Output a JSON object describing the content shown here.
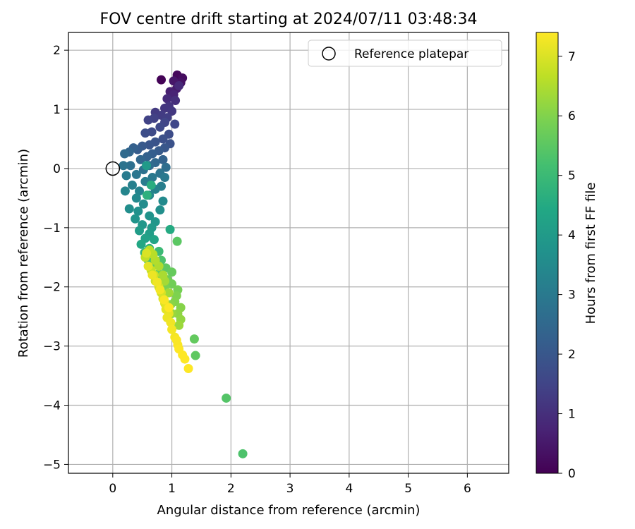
{
  "chart_data": {
    "type": "scatter",
    "title": "FOV centre drift starting at 2024/07/11 03:48:34",
    "xlabel": "Angular distance from reference (arcmin)",
    "ylabel": "Rotation from reference (arcmin)",
    "xlim": [
      -0.75,
      6.7
    ],
    "ylim": [
      -5.15,
      2.3
    ],
    "xticks": [
      0,
      1,
      2,
      3,
      4,
      5,
      6
    ],
    "yticks": [
      -5,
      -4,
      -3,
      -2,
      -1,
      0,
      1,
      2
    ],
    "xtick_labels": [
      "0",
      "1",
      "2",
      "3",
      "4",
      "5",
      "6"
    ],
    "ytick_labels": [
      "−5",
      "−4",
      "−3",
      "−2",
      "−1",
      "0",
      "1",
      "2"
    ],
    "grid": true,
    "legend": {
      "position": "top-right",
      "entries": [
        {
          "label": "Reference platepar",
          "marker": "open-circle",
          "color": "#000000"
        }
      ]
    },
    "colorbar": {
      "label": "Hours from first FF file",
      "colormap": "viridis",
      "range": [
        0,
        7.4
      ],
      "ticks": [
        0,
        1,
        2,
        3,
        4,
        5,
        6,
        7
      ],
      "tick_labels": [
        "0",
        "1",
        "2",
        "3",
        "4",
        "5",
        "6",
        "7"
      ]
    },
    "reference_point": {
      "x": 0,
      "y": 0
    },
    "points": [
      [
        0.82,
        1.5,
        0.05
      ],
      [
        1.09,
        1.58,
        0.15
      ],
      [
        1.18,
        1.53,
        0.25
      ],
      [
        1.15,
        1.45,
        0.35
      ],
      [
        1.03,
        1.48,
        0.45
      ],
      [
        1.08,
        1.35,
        0.55
      ],
      [
        0.97,
        1.3,
        0.65
      ],
      [
        1.03,
        1.25,
        0.75
      ],
      [
        1.12,
        1.4,
        0.85
      ],
      [
        0.92,
        1.18,
        0.9
      ],
      [
        1.06,
        1.15,
        1.0
      ],
      [
        0.95,
        1.05,
        1.1
      ],
      [
        0.88,
        1.02,
        1.15
      ],
      [
        1.0,
        0.97,
        1.2
      ],
      [
        0.72,
        0.95,
        1.25
      ],
      [
        0.82,
        0.9,
        1.3
      ],
      [
        0.92,
        0.86,
        1.35
      ],
      [
        0.7,
        0.85,
        1.4
      ],
      [
        0.6,
        0.82,
        1.45
      ],
      [
        0.88,
        0.78,
        1.5
      ],
      [
        1.05,
        0.75,
        1.55
      ],
      [
        0.8,
        0.7,
        1.6
      ],
      [
        0.66,
        0.62,
        1.65
      ],
      [
        0.95,
        0.58,
        1.7
      ],
      [
        0.55,
        0.6,
        1.75
      ],
      [
        0.85,
        0.5,
        1.8
      ],
      [
        0.97,
        0.42,
        1.85
      ],
      [
        0.72,
        0.45,
        1.9
      ],
      [
        0.62,
        0.4,
        1.95
      ],
      [
        0.88,
        0.35,
        2.0
      ],
      [
        0.5,
        0.38,
        2.05
      ],
      [
        0.78,
        0.3,
        2.1
      ],
      [
        0.42,
        0.32,
        2.15
      ],
      [
        0.67,
        0.25,
        2.2
      ],
      [
        0.35,
        0.35,
        2.25
      ],
      [
        0.58,
        0.2,
        2.3
      ],
      [
        0.85,
        0.15,
        2.35
      ],
      [
        0.28,
        0.28,
        2.4
      ],
      [
        0.47,
        0.15,
        2.45
      ],
      [
        0.72,
        0.1,
        2.5
      ],
      [
        0.2,
        0.25,
        2.55
      ],
      [
        0.62,
        0.05,
        2.6
      ],
      [
        0.9,
        0.02,
        2.65
      ],
      [
        0.3,
        0.05,
        2.7
      ],
      [
        0.52,
        -0.02,
        2.75
      ],
      [
        0.18,
        0.05,
        2.8
      ],
      [
        0.8,
        -0.08,
        2.85
      ],
      [
        0.4,
        -0.1,
        2.9
      ],
      [
        0.67,
        -0.15,
        2.95
      ],
      [
        0.88,
        -0.15,
        3.0
      ],
      [
        0.23,
        -0.12,
        3.05
      ],
      [
        0.55,
        -0.22,
        3.1
      ],
      [
        0.82,
        -0.3,
        3.15
      ],
      [
        0.33,
        -0.28,
        3.2
      ],
      [
        0.72,
        -0.35,
        3.25
      ],
      [
        0.45,
        -0.38,
        3.3
      ],
      [
        0.21,
        -0.38,
        3.35
      ],
      [
        0.62,
        -0.45,
        3.4
      ],
      [
        0.4,
        -0.5,
        3.45
      ],
      [
        0.85,
        -0.55,
        3.5
      ],
      [
        0.52,
        -0.6,
        3.55
      ],
      [
        0.28,
        -0.68,
        3.6
      ],
      [
        0.8,
        -0.7,
        3.65
      ],
      [
        0.43,
        -0.72,
        3.7
      ],
      [
        0.62,
        -0.8,
        3.75
      ],
      [
        0.38,
        -0.85,
        3.8
      ],
      [
        0.72,
        -0.9,
        3.85
      ],
      [
        0.5,
        -0.95,
        3.9
      ],
      [
        0.66,
        -1.0,
        3.95
      ],
      [
        0.57,
        0.05,
        4.0
      ],
      [
        0.45,
        -1.05,
        4.05
      ],
      [
        0.62,
        -1.1,
        4.1
      ],
      [
        0.55,
        -1.18,
        4.2
      ],
      [
        0.7,
        -1.2,
        4.3
      ],
      [
        0.48,
        -1.28,
        4.4
      ],
      [
        0.97,
        -1.03,
        4.5
      ],
      [
        0.65,
        -0.28,
        4.6
      ],
      [
        0.58,
        -0.45,
        4.7
      ],
      [
        0.62,
        -1.35,
        4.8
      ],
      [
        0.54,
        -1.42,
        4.9
      ],
      [
        0.78,
        -1.4,
        5.0
      ],
      [
        0.68,
        -1.5,
        5.1
      ],
      [
        0.6,
        -1.55,
        5.2
      ],
      [
        0.82,
        -1.55,
        5.3
      ],
      [
        0.72,
        -1.62,
        5.4
      ],
      [
        1.09,
        -1.23,
        5.5
      ],
      [
        0.9,
        -1.68,
        5.55
      ],
      [
        0.65,
        -1.68,
        5.6
      ],
      [
        1.0,
        -1.75,
        5.65
      ],
      [
        0.78,
        -1.78,
        5.7
      ],
      [
        0.93,
        -1.88,
        5.75
      ],
      [
        1.0,
        -1.95,
        5.8
      ],
      [
        1.1,
        -2.05,
        5.85
      ],
      [
        0.88,
        -2.0,
        5.9
      ],
      [
        1.08,
        -2.15,
        5.95
      ],
      [
        1.05,
        -2.25,
        6.0
      ],
      [
        1.15,
        -2.35,
        6.05
      ],
      [
        0.98,
        -2.3,
        6.1
      ],
      [
        1.1,
        -2.45,
        6.15
      ],
      [
        1.15,
        -2.55,
        6.2
      ],
      [
        1.0,
        -2.45,
        6.25
      ],
      [
        1.12,
        -2.65,
        6.3
      ],
      [
        1.38,
        -2.88,
        5.6
      ],
      [
        1.4,
        -3.16,
        5.55
      ],
      [
        1.92,
        -3.88,
        5.4
      ],
      [
        2.2,
        -4.82,
        5.3
      ],
      [
        0.95,
        -2.1,
        6.35
      ],
      [
        0.88,
        -1.9,
        6.4
      ],
      [
        0.85,
        -1.8,
        6.45
      ],
      [
        0.78,
        -1.65,
        6.5
      ],
      [
        0.72,
        -1.55,
        6.55
      ],
      [
        0.68,
        -1.45,
        6.6
      ],
      [
        0.62,
        -1.38,
        6.65
      ],
      [
        0.55,
        -1.5,
        6.7
      ],
      [
        0.65,
        -1.72,
        6.75
      ],
      [
        0.7,
        -1.8,
        6.8
      ],
      [
        0.72,
        -1.9,
        6.85
      ],
      [
        0.78,
        -2.0,
        6.9
      ],
      [
        0.82,
        -2.1,
        6.95
      ],
      [
        0.85,
        -2.2,
        7.0
      ],
      [
        0.88,
        -2.28,
        7.05
      ],
      [
        0.9,
        -2.38,
        7.1
      ],
      [
        0.95,
        -2.45,
        7.15
      ],
      [
        0.92,
        -2.52,
        7.2
      ],
      [
        0.98,
        -2.6,
        7.25
      ],
      [
        1.0,
        -2.72,
        7.3
      ],
      [
        1.05,
        -2.85,
        7.3
      ],
      [
        1.1,
        -2.98,
        7.35
      ],
      [
        1.08,
        -2.9,
        7.35
      ],
      [
        1.12,
        -3.05,
        7.4
      ],
      [
        1.18,
        -3.15,
        7.4
      ],
      [
        1.22,
        -3.22,
        7.4
      ],
      [
        1.28,
        -3.38,
        7.4
      ],
      [
        0.6,
        -1.65,
        7.1
      ],
      [
        0.67,
        -1.8,
        7.2
      ],
      [
        0.75,
        -1.92,
        7.25
      ],
      [
        0.8,
        -2.05,
        7.3
      ],
      [
        0.87,
        -2.22,
        7.35
      ],
      [
        0.95,
        -2.35,
        7.4
      ],
      [
        0.57,
        -1.43,
        7.0
      ]
    ]
  }
}
